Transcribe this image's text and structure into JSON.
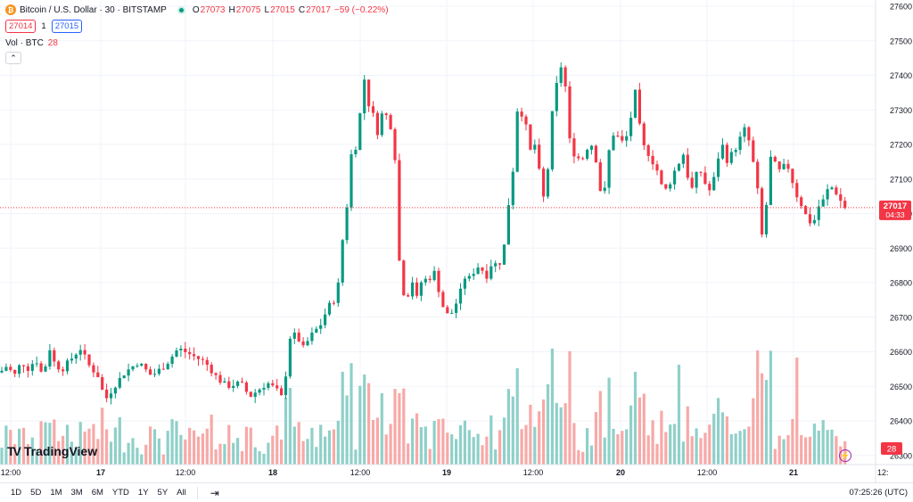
{
  "legend": {
    "symbol_icon": "bitcoin-icon",
    "symbol": "Bitcoin / U.S. Dollar · 30 · BITSTAMP",
    "open_label": "O",
    "open": "27073",
    "high_label": "H",
    "high": "27075",
    "low_label": "L",
    "low": "27015",
    "close_label": "C",
    "close": "27017",
    "change": "−59 (−0.22%)",
    "sell_price": "27014",
    "spread": "1",
    "buy_price": "27015",
    "volume_label": "Vol · BTC",
    "volume_value": "28"
  },
  "price_scale": {
    "ticks": [
      "27600",
      "27500",
      "27400",
      "27300",
      "27200",
      "27100",
      "27000",
      "26900",
      "26800",
      "26700",
      "26600",
      "26500",
      "26400",
      "26300"
    ],
    "last_price": "27017",
    "countdown": "04:33",
    "volume_badge": "28"
  },
  "time_scale": {
    "labels": [
      "12:00",
      "17",
      "12:00",
      "18",
      "12:00",
      "19",
      "12:00",
      "20",
      "12:00",
      "21",
      "12:"
    ]
  },
  "logo": {
    "text": "TradingView"
  },
  "bottom_bar": {
    "timeframes": [
      "1D",
      "5D",
      "1M",
      "3M",
      "6M",
      "YTD",
      "1Y",
      "5Y",
      "All"
    ],
    "clock": "07:25:26 (UTC)"
  },
  "colors": {
    "up": "#089981",
    "down": "#f23645",
    "up_volume": "#8fd0c9",
    "down_volume": "#f7a9a7",
    "grid": "#f0f3fa"
  },
  "chart_data": {
    "type": "candlestick",
    "ylim": [
      26275,
      27625
    ],
    "close_path": [
      [
        0,
        26540
      ],
      [
        8,
        26560
      ],
      [
        16,
        26530
      ],
      [
        24,
        26570
      ],
      [
        32,
        26550
      ],
      [
        40,
        26580
      ],
      [
        48,
        26530
      ],
      [
        56,
        26610
      ],
      [
        62,
        26560
      ],
      [
        70,
        26550
      ],
      [
        80,
        26580
      ],
      [
        90,
        26610
      ],
      [
        100,
        26560
      ],
      [
        110,
        26530
      ],
      [
        118,
        26460
      ],
      [
        128,
        26500
      ],
      [
        140,
        26540
      ],
      [
        155,
        26570
      ],
      [
        170,
        26530
      ],
      [
        185,
        26560
      ],
      [
        200,
        26610
      ],
      [
        215,
        26590
      ],
      [
        230,
        26570
      ],
      [
        245,
        26520
      ],
      [
        255,
        26500
      ],
      [
        270,
        26510
      ],
      [
        280,
        26470
      ],
      [
        290,
        26490
      ],
      [
        300,
        26510
      ],
      [
        310,
        26490
      ],
      [
        318,
        26460
      ],
      [
        324,
        26640
      ],
      [
        332,
        26650
      ],
      [
        340,
        26610
      ],
      [
        350,
        26650
      ],
      [
        360,
        26680
      ],
      [
        368,
        26730
      ],
      [
        378,
        26760
      ],
      [
        384,
        26920
      ],
      [
        390,
        27040
      ],
      [
        394,
        27170
      ],
      [
        398,
        27180
      ],
      [
        402,
        27240
      ],
      [
        408,
        27400
      ],
      [
        413,
        27320
      ],
      [
        418,
        27290
      ],
      [
        424,
        27230
      ],
      [
        430,
        27310
      ],
      [
        436,
        27260
      ],
      [
        442,
        27240
      ],
      [
        446,
        26930
      ],
      [
        450,
        26790
      ],
      [
        456,
        26750
      ],
      [
        462,
        26810
      ],
      [
        468,
        26750
      ],
      [
        474,
        26820
      ],
      [
        480,
        26800
      ],
      [
        486,
        26840
      ],
      [
        492,
        26780
      ],
      [
        498,
        26720
      ],
      [
        504,
        26700
      ],
      [
        510,
        26730
      ],
      [
        516,
        26770
      ],
      [
        522,
        26820
      ],
      [
        528,
        26810
      ],
      [
        534,
        26850
      ],
      [
        540,
        26840
      ],
      [
        546,
        26820
      ],
      [
        552,
        26860
      ],
      [
        558,
        26850
      ],
      [
        564,
        26870
      ],
      [
        570,
        27020
      ],
      [
        576,
        27140
      ],
      [
        580,
        27300
      ],
      [
        585,
        27290
      ],
      [
        590,
        27250
      ],
      [
        595,
        27180
      ],
      [
        600,
        27200
      ],
      [
        606,
        27100
      ],
      [
        612,
        27010
      ],
      [
        617,
        27250
      ],
      [
        622,
        27330
      ],
      [
        628,
        27440
      ],
      [
        634,
        27370
      ],
      [
        640,
        27180
      ],
      [
        646,
        27170
      ],
      [
        652,
        27150
      ],
      [
        658,
        27190
      ],
      [
        664,
        27200
      ],
      [
        670,
        27140
      ],
      [
        676,
        27010
      ],
      [
        682,
        27170
      ],
      [
        688,
        27230
      ],
      [
        694,
        27220
      ],
      [
        700,
        27200
      ],
      [
        706,
        27250
      ],
      [
        712,
        27360
      ],
      [
        716,
        27280
      ],
      [
        720,
        27200
      ],
      [
        726,
        27180
      ],
      [
        732,
        27150
      ],
      [
        738,
        27120
      ],
      [
        744,
        27060
      ],
      [
        750,
        27080
      ],
      [
        756,
        27120
      ],
      [
        762,
        27150
      ],
      [
        768,
        27180
      ],
      [
        774,
        27050
      ],
      [
        780,
        27110
      ],
      [
        786,
        27120
      ],
      [
        792,
        27080
      ],
      [
        798,
        27060
      ],
      [
        804,
        27150
      ],
      [
        810,
        27200
      ],
      [
        816,
        27150
      ],
      [
        822,
        27180
      ],
      [
        828,
        27200
      ],
      [
        834,
        27250
      ],
      [
        840,
        27210
      ],
      [
        846,
        27130
      ],
      [
        850,
        27060
      ],
      [
        854,
        26930
      ],
      [
        858,
        26980
      ],
      [
        862,
        27100
      ],
      [
        866,
        27200
      ],
      [
        870,
        27130
      ],
      [
        876,
        27120
      ],
      [
        882,
        27150
      ],
      [
        888,
        27100
      ],
      [
        894,
        27050
      ],
      [
        900,
        27020
      ],
      [
        906,
        26980
      ],
      [
        912,
        26970
      ],
      [
        918,
        27020
      ],
      [
        924,
        27040
      ],
      [
        930,
        27080
      ],
      [
        936,
        27070
      ],
      [
        942,
        27040
      ],
      [
        948,
        27017
      ]
    ],
    "volume_spikes": [
      [
        384,
        26,
        "up"
      ],
      [
        450,
        20,
        "down"
      ],
      [
        578,
        27,
        "up"
      ],
      [
        714,
        26,
        "down"
      ],
      [
        762,
        28,
        "up"
      ],
      [
        850,
        32,
        "down"
      ],
      [
        896,
        30,
        "down"
      ]
    ]
  }
}
